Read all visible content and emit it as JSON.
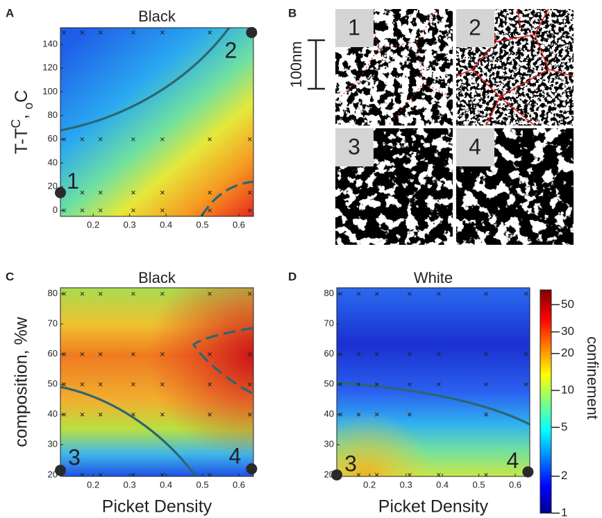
{
  "panel_labels": [
    "A",
    "B",
    "C",
    "D"
  ],
  "micrographs": {
    "labels": [
      "1",
      "2",
      "3",
      "4"
    ],
    "scale_bar": "100nm"
  },
  "chart_data": [
    {
      "type": "heatmap",
      "title": "Black",
      "x_label": "",
      "y_label": [
        "T-T",
        "C",
        ", ",
        "o",
        "C"
      ],
      "xlim": [
        0.11,
        0.64
      ],
      "ylim": [
        -5,
        154
      ],
      "xticks": [
        0.2,
        0.3,
        0.4,
        0.5,
        0.6
      ],
      "yticks": [
        0,
        20,
        40,
        60,
        80,
        100,
        120,
        140
      ],
      "points": {
        "x": [
          0.12,
          0.17,
          0.22,
          0.31,
          0.39,
          0.52,
          0.12,
          0.17,
          0.22,
          0.31,
          0.39,
          0.52,
          0.63,
          0.17,
          0.22,
          0.31,
          0.39,
          0.52,
          0.63,
          0.12,
          0.17,
          0.22,
          0.31,
          0.39,
          0.52,
          0.63
        ],
        "y": [
          150,
          150,
          150,
          150,
          150,
          150,
          60,
          60,
          60,
          60,
          60,
          60,
          60,
          15,
          15,
          15,
          15,
          15,
          15,
          0,
          0,
          0,
          0,
          0,
          0,
          0
        ]
      },
      "markers": [
        {
          "label": "1",
          "x": 0.11,
          "y": 15
        },
        {
          "label": "2",
          "x": 0.635,
          "y": 150
        }
      ]
    },
    {
      "type": "heatmap",
      "title": "Black",
      "x_label": "Picket Density",
      "y_label": "composition, %w",
      "xlim": [
        0.11,
        0.64
      ],
      "ylim": [
        19.5,
        82
      ],
      "xticks": [
        0.2,
        0.3,
        0.4,
        0.5,
        0.6
      ],
      "yticks": [
        20,
        30,
        40,
        50,
        60,
        70,
        80
      ],
      "points": {
        "x": [
          0.12,
          0.17,
          0.22,
          0.31,
          0.39,
          0.52,
          0.63,
          0.12,
          0.17,
          0.22,
          0.31,
          0.39,
          0.52,
          0.63,
          0.12,
          0.17,
          0.22,
          0.31,
          0.39,
          0.52,
          0.63,
          0.12,
          0.17,
          0.22,
          0.31,
          0.39,
          0.52,
          0.63,
          0.17,
          0.22,
          0.31,
          0.39,
          0.52
        ],
        "y": [
          80,
          80,
          80,
          80,
          80,
          80,
          80,
          60,
          60,
          60,
          60,
          60,
          60,
          60,
          50,
          50,
          50,
          50,
          50,
          50,
          50,
          40,
          40,
          40,
          40,
          40,
          40,
          40,
          20,
          20,
          20,
          20,
          20
        ]
      },
      "markers": [
        {
          "label": "3",
          "x": 0.11,
          "y": 21.5
        },
        {
          "label": "4",
          "x": 0.635,
          "y": 22
        }
      ]
    },
    {
      "type": "heatmap",
      "title": "White",
      "x_label": "Picket Density",
      "xlim": [
        0.11,
        0.64
      ],
      "ylim": [
        19.5,
        82
      ],
      "xticks": [
        0.2,
        0.3,
        0.4,
        0.5,
        0.6
      ],
      "yticks": [
        20,
        30,
        40,
        50,
        60,
        70,
        80
      ],
      "points": {
        "x": [
          0.12,
          0.17,
          0.22,
          0.31,
          0.39,
          0.52,
          0.63,
          0.12,
          0.17,
          0.22,
          0.31,
          0.39,
          0.52,
          0.63,
          0.12,
          0.17,
          0.22,
          0.31,
          0.39,
          0.52,
          0.63,
          0.12,
          0.17,
          0.22,
          0.31,
          0.52,
          0.17,
          0.22,
          0.31,
          0.39,
          0.52
        ],
        "y": [
          80,
          80,
          80,
          80,
          80,
          80,
          80,
          60,
          60,
          60,
          60,
          60,
          60,
          60,
          50,
          50,
          50,
          50,
          50,
          50,
          50,
          40,
          40,
          40,
          40,
          40,
          20,
          20,
          20,
          20,
          20
        ]
      },
      "markers": [
        {
          "label": "3",
          "x": 0.11,
          "y": 20
        },
        {
          "label": "4",
          "x": 0.635,
          "y": 21
        }
      ],
      "colorbar": {
        "label": "confinement",
        "log": true,
        "ylim": [
          1,
          66
        ],
        "yticks": [
          1,
          2,
          5,
          10,
          20,
          30,
          50
        ]
      }
    }
  ]
}
